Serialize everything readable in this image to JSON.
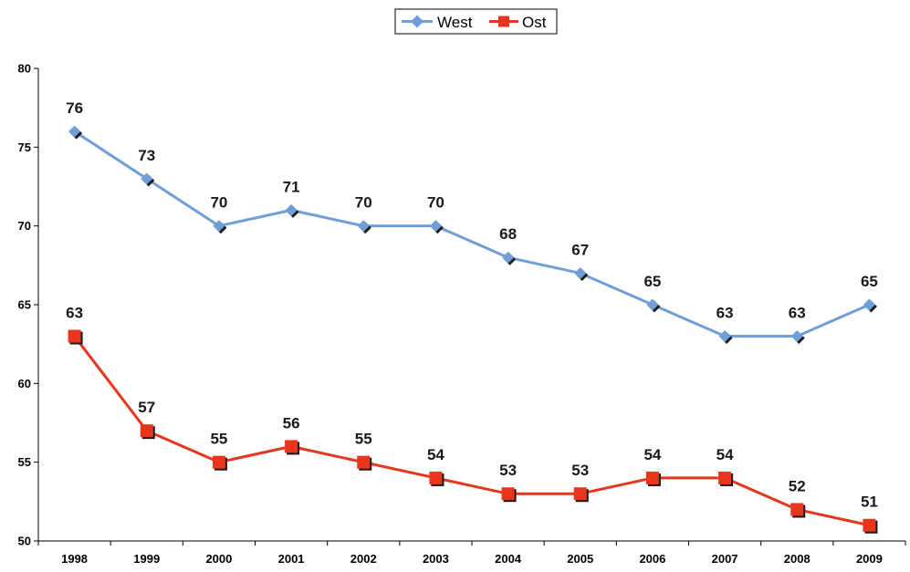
{
  "chart_data": {
    "type": "line",
    "categories": [
      "1998",
      "1999",
      "2000",
      "2001",
      "2002",
      "2003",
      "2004",
      "2005",
      "2006",
      "2007",
      "2008",
      "2009"
    ],
    "series": [
      {
        "name": "West",
        "color": "#6f9fd6",
        "marker": "diamond",
        "values": [
          76,
          73,
          70,
          71,
          70,
          70,
          68,
          67,
          65,
          63,
          63,
          65
        ]
      },
      {
        "name": "Ost",
        "color": "#e8361d",
        "marker": "square",
        "values": [
          63,
          57,
          55,
          56,
          55,
          54,
          53,
          53,
          54,
          54,
          52,
          51
        ]
      }
    ],
    "ylim": [
      50,
      80
    ],
    "yticks": [
      50,
      55,
      60,
      65,
      70,
      75,
      80
    ],
    "ytick_labels": [
      "50",
      "55",
      "60",
      "65",
      "70",
      "75",
      "80"
    ],
    "grid": false,
    "legend_position": "top-center",
    "data_labels": true
  }
}
